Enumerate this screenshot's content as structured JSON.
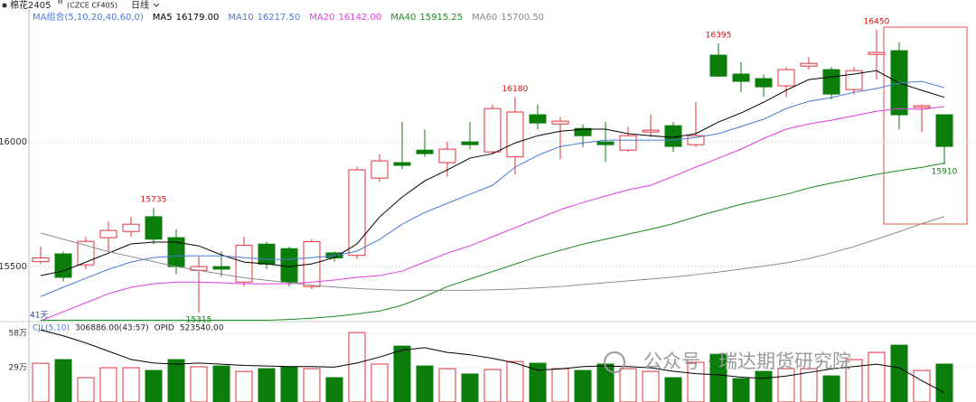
{
  "header": {
    "symbol": "棉花2405",
    "suffix": "M",
    "code": "(CZCE CF405)",
    "period": "日线"
  },
  "watermark": "公众号 · 瑞达期货研究院",
  "chart_data": {
    "type": "candlestick",
    "ma_label": "MA组合(5,10,20,40,60,0)",
    "days_label": "41天",
    "up_color": "#e0323c",
    "down_color": "#0a7d0a",
    "ylim": [
      15283,
      16533
    ],
    "yticks": [
      15500,
      16000
    ],
    "grid": true,
    "candles": {
      "open": [
        15520,
        15551,
        15507,
        15616,
        15641,
        15700,
        15616,
        15485,
        15500,
        15438,
        15590,
        15572,
        15420,
        15555,
        15545,
        15855,
        15917,
        15967,
        15917,
        16000,
        15960,
        15940,
        16109,
        16072,
        16054,
        16000,
        15967,
        16040,
        16065,
        15989,
        16348,
        16272,
        16254,
        16225,
        16304,
        16290,
        16210,
        16351,
        16366,
        16138,
        16109
      ],
      "high": [
        15580,
        15560,
        15620,
        15680,
        15700,
        15735,
        15650,
        15540,
        15560,
        15620,
        15600,
        15580,
        15610,
        15560,
        15900,
        15950,
        16080,
        16050,
        16000,
        16080,
        16150,
        16180,
        16150,
        16100,
        16070,
        16080,
        16060,
        16110,
        16080,
        16160,
        16395,
        16320,
        16270,
        16300,
        16340,
        16300,
        16300,
        16450,
        16400,
        16150,
        16110
      ],
      "low": [
        15510,
        15440,
        15490,
        15560,
        15620,
        15590,
        15470,
        15315,
        15460,
        15420,
        15490,
        15420,
        15410,
        15520,
        15530,
        15840,
        15890,
        15940,
        15860,
        15970,
        15950,
        15870,
        16050,
        15930,
        15980,
        15920,
        15960,
        16020,
        15960,
        15980,
        16260,
        16200,
        16180,
        16180,
        16290,
        16170,
        16190,
        16250,
        16050,
        16040,
        15910
      ],
      "close": [
        15535,
        15457,
        15601,
        15645,
        15670,
        15610,
        15500,
        15500,
        15490,
        15585,
        15510,
        15438,
        15600,
        15535,
        15888,
        15924,
        15906,
        15953,
        15971,
        15989,
        16134,
        16120,
        16076,
        16083,
        16025,
        15989,
        16025,
        16047,
        15982,
        16025,
        16264,
        16243,
        16221,
        16290,
        16315,
        16192,
        16286,
        16359,
        16109,
        16145,
        15982
      ]
    },
    "ma": [
      {
        "name": "MA5",
        "value_label": "16179.00",
        "color": "#000000",
        "values": [
          15464,
          15482,
          15518,
          15554,
          15591,
          15598,
          15598,
          15583,
          15547,
          15518,
          15511,
          15500,
          15511,
          15536,
          15591,
          15699,
          15779,
          15844,
          15888,
          15935,
          15953,
          15996,
          16025,
          16043,
          16051,
          16051,
          16033,
          16025,
          16018,
          16033,
          16080,
          16116,
          16159,
          16207,
          16250,
          16261,
          16272,
          16286,
          16236,
          16207,
          16179
        ]
      },
      {
        "name": "MA10",
        "value_label": "16217.50",
        "color": "#4a78d8",
        "values": [
          15380,
          15417,
          15453,
          15489,
          15518,
          15536,
          15543,
          15543,
          15543,
          15536,
          15529,
          15529,
          15536,
          15543,
          15562,
          15609,
          15670,
          15717,
          15754,
          15790,
          15826,
          15899,
          15946,
          15982,
          15996,
          16007,
          16007,
          16007,
          16007,
          16018,
          16033,
          16062,
          16091,
          16134,
          16163,
          16178,
          16199,
          16214,
          16236,
          16243,
          16217.5
        ]
      },
      {
        "name": "MA20",
        "value_label": "16142.00",
        "color": "#e03ce0",
        "values": [
          15283,
          15319,
          15355,
          15391,
          15417,
          15431,
          15438,
          15438,
          15435,
          15431,
          15431,
          15431,
          15438,
          15446,
          15457,
          15464,
          15482,
          15518,
          15554,
          15583,
          15620,
          15656,
          15692,
          15728,
          15757,
          15783,
          15808,
          15826,
          15862,
          15899,
          15935,
          15971,
          16014,
          16051,
          16072,
          16087,
          16105,
          16123,
          16134,
          16130,
          16142
        ]
      },
      {
        "name": "MA40",
        "value_label": "15915.25",
        "color": "#1a8f1a",
        "values": [
          15285,
          15285,
          15285,
          15285,
          15285,
          15285,
          15285,
          15285,
          15285,
          15285,
          15285,
          15288,
          15293,
          15300,
          15310,
          15322,
          15345,
          15380,
          15420,
          15450,
          15480,
          15510,
          15540,
          15565,
          15590,
          15610,
          15630,
          15650,
          15672,
          15700,
          15725,
          15750,
          15770,
          15790,
          15815,
          15835,
          15852,
          15870,
          15885,
          15898,
          15915.25
        ]
      },
      {
        "name": "MA60",
        "value_label": "15700.50",
        "color": "#8c8c8c",
        "values": [
          15635,
          15610,
          15585,
          15560,
          15540,
          15520,
          15500,
          15485,
          15470,
          15455,
          15445,
          15435,
          15425,
          15418,
          15412,
          15408,
          15405,
          15405,
          15405,
          15405,
          15407,
          15410,
          15415,
          15420,
          15428,
          15435,
          15443,
          15450,
          15458,
          15468,
          15478,
          15490,
          15502,
          15515,
          15532,
          15555,
          15580,
          15610,
          15640,
          15672,
          15700.5
        ]
      }
    ],
    "volume": {
      "label": "CJL(5,10)",
      "readout": "306886.00(43:57)",
      "opi_label": "OPID",
      "opi": "523540.00",
      "ylim": [
        0,
        650000
      ],
      "yticks": [
        {
          "value": 290000,
          "label": "29万"
        },
        {
          "value": 580000,
          "label": "58万"
        }
      ],
      "values": [
        328000,
        359000,
        206000,
        290000,
        290000,
        267000,
        359000,
        298000,
        305000,
        259000,
        282000,
        298000,
        282000,
        206000,
        588000,
        321000,
        473000,
        305000,
        282000,
        237000,
        275000,
        343000,
        328000,
        282000,
        267000,
        321000,
        282000,
        259000,
        206000,
        336000,
        404000,
        198000,
        259000,
        282000,
        282000,
        221000,
        359000,
        420000,
        481000,
        267000,
        321000
      ],
      "ma": [
        {
          "color": "#000000",
          "values": [
            610000,
            560000,
            500000,
            430000,
            360000,
            330000,
            320000,
            330000,
            320000,
            310000,
            305000,
            300000,
            300000,
            295000,
            330000,
            380000,
            440000,
            460000,
            420000,
            400000,
            370000,
            330000,
            270000,
            280000,
            300000,
            305000,
            300000,
            290000,
            260000,
            240000,
            230000,
            210000,
            200000,
            220000,
            250000,
            280000,
            300000,
            320000,
            290000,
            180000,
            80000
          ]
        }
      ]
    }
  }
}
